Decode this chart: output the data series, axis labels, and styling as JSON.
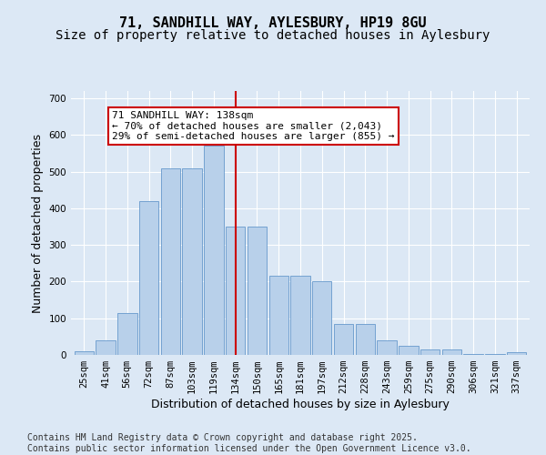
{
  "title_line1": "71, SANDHILL WAY, AYLESBURY, HP19 8GU",
  "title_line2": "Size of property relative to detached houses in Aylesbury",
  "xlabel": "Distribution of detached houses by size in Aylesbury",
  "ylabel": "Number of detached properties",
  "footnote": "Contains HM Land Registry data © Crown copyright and database right 2025.\nContains public sector information licensed under the Open Government Licence v3.0.",
  "annotation_title": "71 SANDHILL WAY: 138sqm",
  "annotation_line2": "← 70% of detached houses are smaller (2,043)",
  "annotation_line3": "29% of semi-detached houses are larger (855) →",
  "bar_categories": [
    "25sqm",
    "41sqm",
    "56sqm",
    "72sqm",
    "87sqm",
    "103sqm",
    "119sqm",
    "134sqm",
    "150sqm",
    "165sqm",
    "181sqm",
    "197sqm",
    "212sqm",
    "228sqm",
    "243sqm",
    "259sqm",
    "275sqm",
    "290sqm",
    "306sqm",
    "321sqm",
    "337sqm"
  ],
  "bar_values": [
    10,
    40,
    115,
    420,
    510,
    510,
    570,
    350,
    350,
    215,
    215,
    200,
    85,
    85,
    40,
    25,
    15,
    15,
    2,
    2,
    8
  ],
  "bar_color": "#b8d0ea",
  "bar_edge_color": "#6699cc",
  "vline_color": "#cc0000",
  "vline_index": 7,
  "ylim": [
    0,
    720
  ],
  "yticks": [
    0,
    100,
    200,
    300,
    400,
    500,
    600,
    700
  ],
  "bg_color": "#dce8f5",
  "plot_bg_color": "#dce8f5",
  "annotation_box_facecolor": "#ffffff",
  "annotation_box_edgecolor": "#cc0000",
  "title_fontsize": 11,
  "subtitle_fontsize": 10,
  "tick_fontsize": 7.5,
  "label_fontsize": 9,
  "annotation_fontsize": 8,
  "footnote_fontsize": 7
}
